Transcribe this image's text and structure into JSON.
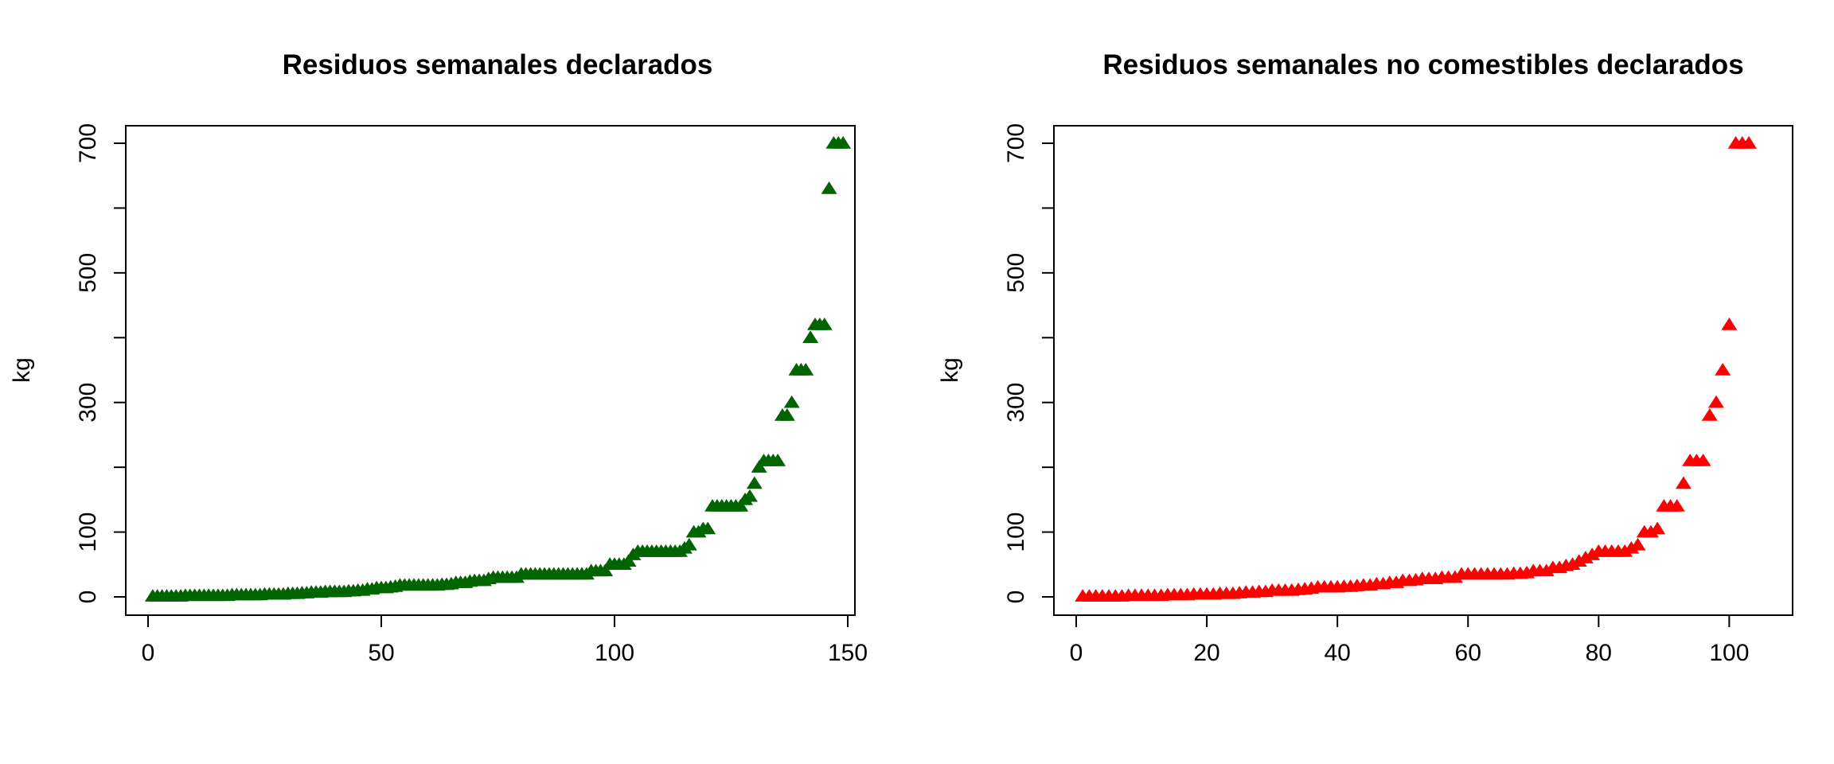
{
  "chart_data": [
    {
      "type": "scatter",
      "title": "Residuos semanales declarados",
      "xlabel": "",
      "ylabel": "kg",
      "xlim": [
        0,
        150
      ],
      "ylim": [
        0,
        700
      ],
      "xticks": [
        "0",
        "50",
        "100",
        "150"
      ],
      "yticks": [
        "0",
        "100",
        "300",
        "500",
        "700"
      ],
      "marker": "filled-triangle",
      "color": "#006400",
      "grid": false,
      "y": [
        1,
        1,
        1,
        1,
        1,
        1,
        1,
        2,
        2,
        2,
        2,
        2,
        2,
        2,
        2,
        2,
        2,
        3,
        3,
        3,
        3,
        3,
        3,
        3,
        4,
        4,
        4,
        4,
        4,
        5,
        5,
        5,
        6,
        6,
        7,
        7,
        7,
        8,
        8,
        8,
        8,
        8,
        9,
        9,
        10,
        10,
        12,
        12,
        14,
        14,
        14,
        15,
        16,
        18,
        18,
        18,
        18,
        18,
        18,
        18,
        18,
        18,
        19,
        19,
        20,
        22,
        22,
        22,
        24,
        25,
        25,
        25,
        28,
        30,
        30,
        30,
        30,
        30,
        30,
        35,
        35,
        35,
        35,
        35,
        35,
        35,
        35,
        35,
        35,
        35,
        35,
        35,
        35,
        35,
        40,
        40,
        40,
        40,
        50,
        50,
        50,
        50,
        55,
        65,
        70,
        70,
        70,
        70,
        70,
        70,
        70,
        70,
        70,
        70,
        75,
        80,
        100,
        100,
        105,
        105,
        140,
        140,
        140,
        140,
        140,
        140,
        140,
        150,
        155,
        175,
        200,
        210,
        210,
        210,
        210,
        280,
        280,
        300,
        350,
        350,
        350,
        400,
        420,
        420,
        420,
        630,
        700,
        700,
        700
      ]
    },
    {
      "type": "scatter",
      "title": "Residuos semanales no comestibles declarados",
      "xlabel": "",
      "ylabel": "kg",
      "xlim": [
        0,
        103
      ],
      "ylim": [
        0,
        700
      ],
      "xticks": [
        "0",
        "20",
        "40",
        "60",
        "80",
        "100"
      ],
      "yticks": [
        "0",
        "100",
        "300",
        "500",
        "700"
      ],
      "marker": "filled-triangle",
      "color": "#ff0000",
      "grid": false,
      "y": [
        1,
        1,
        1,
        1,
        1,
        1,
        1,
        2,
        2,
        2,
        2,
        2,
        2,
        3,
        3,
        3,
        3,
        4,
        4,
        4,
        4,
        5,
        5,
        5,
        6,
        7,
        7,
        8,
        8,
        10,
        10,
        10,
        10,
        11,
        12,
        13,
        15,
        15,
        15,
        15,
        16,
        16,
        17,
        18,
        18,
        20,
        20,
        22,
        22,
        25,
        25,
        26,
        28,
        28,
        28,
        30,
        30,
        30,
        35,
        35,
        35,
        35,
        35,
        35,
        35,
        35,
        36,
        36,
        37,
        40,
        40,
        40,
        45,
        45,
        48,
        50,
        55,
        60,
        65,
        70,
        70,
        70,
        70,
        70,
        75,
        80,
        100,
        100,
        105,
        140,
        140,
        140,
        175,
        210,
        210,
        210,
        280,
        300,
        350,
        420,
        700,
        700,
        700
      ]
    }
  ]
}
